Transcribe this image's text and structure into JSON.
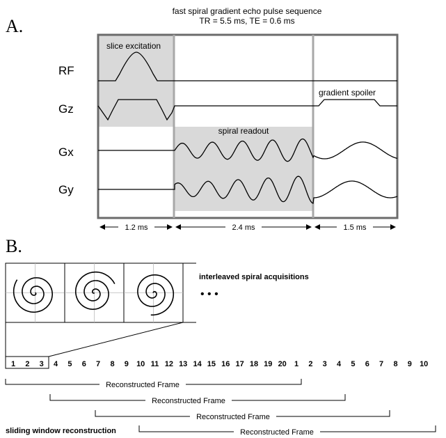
{
  "panel_a": {
    "letter": "A.",
    "title": "fast spiral gradient echo pulse sequence",
    "subtitle": "TR = 5.5 ms, TE = 0.6 ms",
    "channels": [
      "RF",
      "Gz",
      "Gx",
      "Gy"
    ],
    "labels": {
      "slice_excitation": "slice excitation",
      "spiral_readout": "spiral readout",
      "gradient_spoiler": "gradient spoiler"
    },
    "durations": [
      "1.2 ms",
      "2.4 ms",
      "1.5 ms"
    ]
  },
  "panel_b": {
    "letter": "B.",
    "interleaved_label": "interleaved spiral acquisitions",
    "ellipsis": "• • •",
    "frame_numbers": [
      "1",
      "2",
      "3",
      "4",
      "5",
      "6",
      "7",
      "8",
      "9",
      "10",
      "11",
      "12",
      "13",
      "14",
      "15",
      "16",
      "17",
      "18",
      "19",
      "20",
      "1",
      "2",
      "3",
      "4",
      "5",
      "6",
      "7",
      "8",
      "9",
      "10"
    ],
    "reconstructed_label": "Reconstructed Frame",
    "sliding_label": "sliding window reconstruction"
  },
  "colors": {
    "shade": "#d9d9d9",
    "frame_border": "#6b6b6b",
    "divider": "#a8a8a8"
  }
}
